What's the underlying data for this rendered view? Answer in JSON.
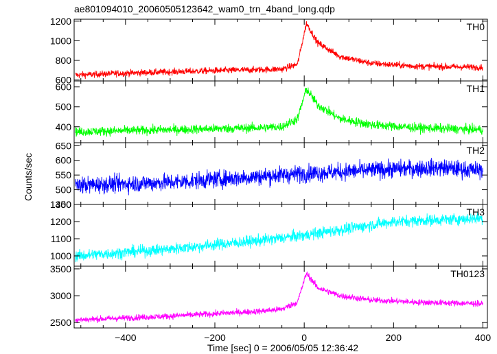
{
  "chart_data": {
    "type": "line",
    "title": "ae801094010_20060505123642_wam0_trn_4band_long.qdp",
    "xlabel": "Time [sec] 0 = 2006/05/05 12:36:42",
    "ylabel": "Counts/sec",
    "xlim": [
      -515,
      410
    ],
    "xticks": [
      -400,
      -200,
      0,
      200,
      400
    ],
    "panels": [
      {
        "label": "TH0",
        "color": "#ff0000",
        "ylim": [
          590,
          1220
        ],
        "yticks": [
          600,
          800,
          1000,
          1200
        ],
        "baseline": [
          [
            -510,
            650
          ],
          [
            -400,
            670
          ],
          [
            -200,
            695
          ],
          [
            -50,
            710
          ],
          [
            -15,
            760
          ]
        ],
        "peak": {
          "t": 5,
          "value": 1180
        },
        "tail": [
          [
            30,
            980
          ],
          [
            80,
            840
          ],
          [
            150,
            770
          ],
          [
            250,
            740
          ],
          [
            400,
            730
          ]
        ],
        "noise": 32
      },
      {
        "label": "TH1",
        "color": "#00ff00",
        "ylim": [
          320,
          630
        ],
        "yticks": [
          400,
          500,
          600
        ],
        "baseline": [
          [
            -510,
            375
          ],
          [
            -300,
            385
          ],
          [
            -100,
            395
          ],
          [
            -50,
            400
          ],
          [
            -15,
            440
          ]
        ],
        "peak": {
          "t": 5,
          "value": 590
        },
        "tail": [
          [
            30,
            510
          ],
          [
            80,
            440
          ],
          [
            150,
            410
          ],
          [
            250,
            395
          ],
          [
            400,
            385
          ]
        ],
        "noise": 22
      },
      {
        "label": "TH2",
        "color": "#0000ff",
        "ylim": [
          450,
          660
        ],
        "yticks": [
          450,
          500,
          550,
          600,
          650
        ],
        "baseline": [
          [
            -510,
            515
          ],
          [
            -300,
            525
          ],
          [
            -100,
            545
          ],
          [
            0,
            555
          ],
          [
            200,
            570
          ],
          [
            300,
            575
          ],
          [
            400,
            565
          ]
        ],
        "peak": null,
        "tail": [],
        "noise": 28
      },
      {
        "label": "TH3",
        "color": "#00ffff",
        "ylim": [
          940,
          1300
        ],
        "yticks": [
          1000,
          1100,
          1200,
          1300
        ],
        "baseline": [
          [
            -510,
            1000
          ],
          [
            -300,
            1040
          ],
          [
            -100,
            1090
          ],
          [
            0,
            1120
          ],
          [
            100,
            1160
          ],
          [
            200,
            1200
          ],
          [
            400,
            1220
          ]
        ],
        "peak": null,
        "tail": [],
        "noise": 32
      },
      {
        "label": "TH0123",
        "color": "#ff00ff",
        "ylim": [
          2400,
          3550
        ],
        "yticks": [
          2500,
          3000,
          3500
        ],
        "baseline": [
          [
            -510,
            2550
          ],
          [
            -300,
            2620
          ],
          [
            -100,
            2710
          ],
          [
            -50,
            2750
          ],
          [
            -15,
            2880
          ]
        ],
        "peak": {
          "t": 5,
          "value": 3420
        },
        "tail": [
          [
            30,
            3150
          ],
          [
            80,
            3000
          ],
          [
            150,
            2920
          ],
          [
            250,
            2880
          ],
          [
            400,
            2850
          ]
        ],
        "noise": 55
      }
    ]
  }
}
